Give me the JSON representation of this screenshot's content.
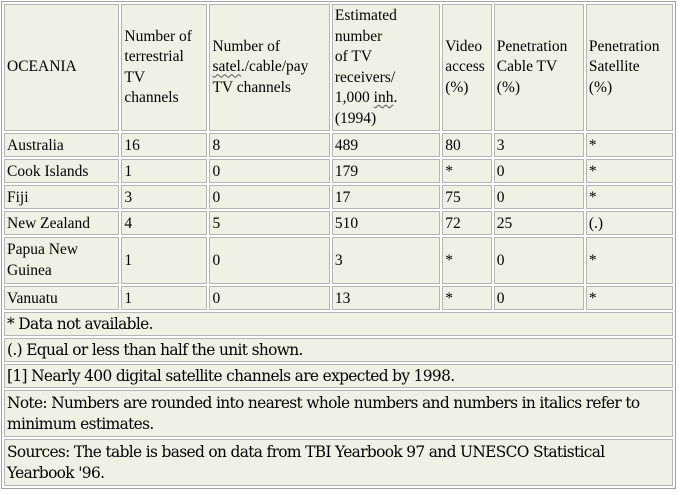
{
  "header": {
    "region": "OCEANIA",
    "terrestrial": [
      "Number of",
      "terrestrial",
      "TV",
      "channels"
    ],
    "satel_prefix": "Number of",
    "satel_word": "satel",
    "satel_rest": "./cable/pay",
    "satel_line3": "TV channels",
    "receivers_l1": "Estimated",
    "receivers_l2": "number",
    "receivers_l3": "of TV",
    "receivers_l4": "receivers/",
    "receivers_l5_prefix": "1,000 ",
    "receivers_l5_word": "inh",
    "receivers_l5_suffix": ".",
    "receivers_l6": "(1994)",
    "video": [
      "Video",
      "access",
      "(%)"
    ],
    "cable": [
      "Penetration",
      "Cable TV",
      "(%)"
    ],
    "satellite": [
      "Penetration",
      "Satellite",
      "(%)"
    ]
  },
  "rows": [
    {
      "country": "Australia",
      "terrestrial": "16",
      "satel": "8",
      "receivers": "489",
      "video": "80",
      "cable": "3",
      "satellite": "*"
    },
    {
      "country": "Cook Islands",
      "terrestrial": "1",
      "satel": "0",
      "receivers": "179",
      "video": "*",
      "cable": "0",
      "satellite": "*"
    },
    {
      "country": "Fiji",
      "terrestrial": "3",
      "satel": "0",
      "receivers": "17",
      "video": "75",
      "cable": "0",
      "satellite": "*"
    },
    {
      "country": "New Zealand",
      "terrestrial": "4",
      "satel": "5",
      "receivers": "510",
      "video": "72",
      "cable": "25",
      "satellite": "(.)"
    },
    {
      "country_l1": "Papua New",
      "country_l2": "Guinea",
      "terrestrial": "1",
      "satel": "0",
      "receivers": "3",
      "video": "*",
      "cable": "0",
      "satellite": "*"
    },
    {
      "country": "Vanuatu",
      "terrestrial": "1",
      "satel": "0",
      "receivers": "13",
      "video": "*",
      "cable": "0",
      "satellite": "*"
    }
  ],
  "notes": {
    "not_available": "* Data not available.",
    "equal_or_less": "(.) Equal or less than half the unit shown.",
    "digital": "[1] Nearly 400 digital satellite channels are expected by 1998.",
    "rounded_l1": "Note: Numbers are rounded into nearest whole numbers and numbers in italics refer to",
    "rounded_l2": "minimum estimates.",
    "sources_l1": "Sources: The table is based on data from TBI Yearbook 97 and UNESCO Statistical",
    "sources_l2": "Yearbook '96."
  }
}
